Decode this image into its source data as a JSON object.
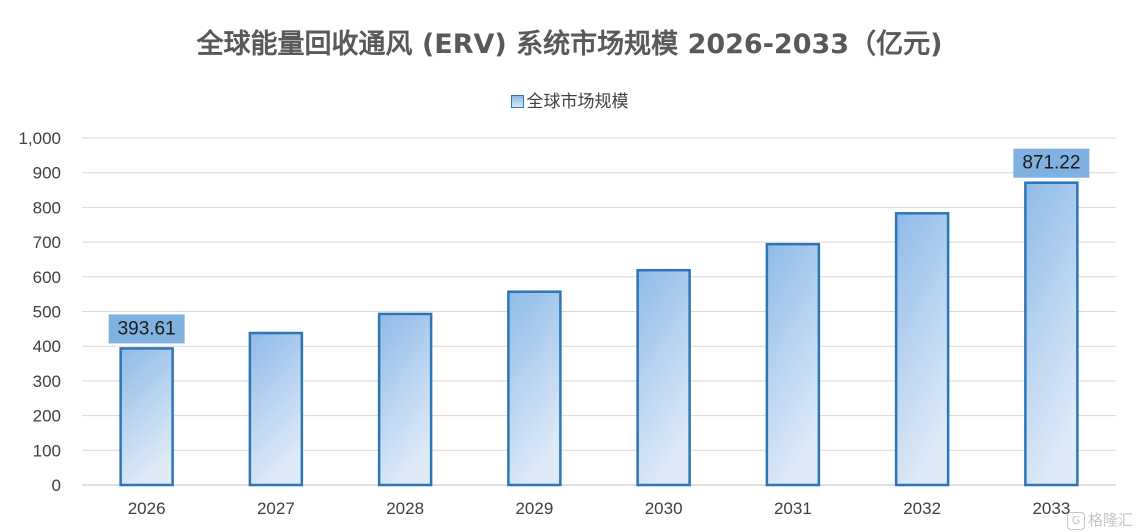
{
  "chart_data": {
    "type": "bar",
    "title": "全球能量回收通风 (ERV) 系统市场规模 2026-2033（亿元)",
    "categories": [
      "2026",
      "2027",
      "2028",
      "2029",
      "2030",
      "2031",
      "2032",
      "2033"
    ],
    "series": [
      {
        "name": "全球市场规模",
        "values": [
          393.61,
          438,
          493,
          557,
          619,
          694,
          783,
          871.22
        ]
      }
    ],
    "data_labels": [
      {
        "category": "2026",
        "text": "393.61"
      },
      {
        "category": "2033",
        "text": "871.22"
      }
    ],
    "ylim": [
      0,
      1000
    ],
    "yticks": [
      0,
      100,
      200,
      300,
      400,
      500,
      600,
      700,
      800,
      900,
      1000
    ],
    "ytick_labels": [
      "0",
      "100",
      "200",
      "300",
      "400",
      "500",
      "600",
      "700",
      "800",
      "900",
      "1,000"
    ],
    "grid": true,
    "legend_position": "top",
    "colors": {
      "bar_fill_top": "#8fbbe8",
      "bar_fill_bottom": "#deeaf7",
      "bar_border": "#2e75b6",
      "label_bg": "#7fb2e0",
      "gridline": "#d9d9d9",
      "axis": "#bfbfbf",
      "text": "#404040",
      "title": "#595959"
    }
  },
  "watermark": {
    "icon": "G",
    "text": "格隆汇"
  }
}
